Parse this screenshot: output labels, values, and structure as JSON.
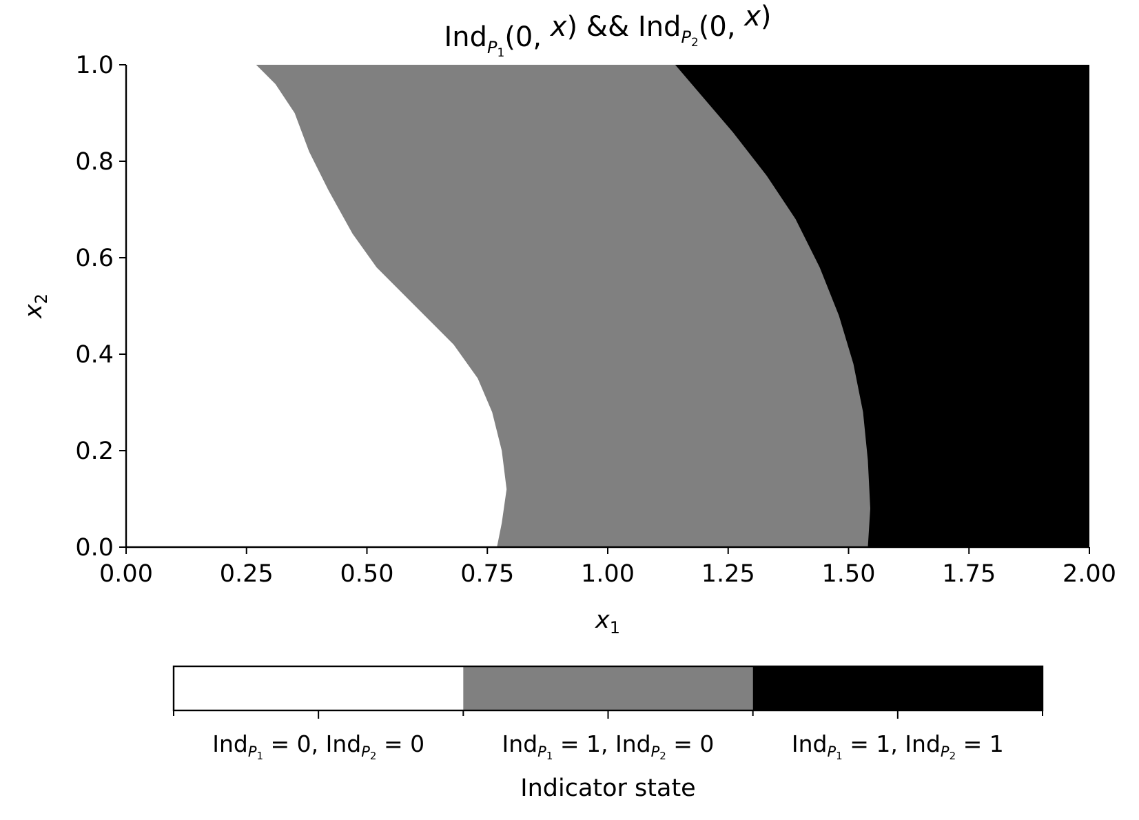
{
  "chart_data": {
    "type": "heatmap",
    "title": {
      "segments": [
        {
          "text": "Ind",
          "style": "normal"
        },
        {
          "text": "P",
          "style": "sub-italic"
        },
        {
          "text": "1",
          "style": "subsub"
        },
        {
          "text": "(0, ",
          "style": "normal"
        },
        {
          "text": "x",
          "style": "italic"
        },
        {
          "text": ") && Ind",
          "style": "normal"
        },
        {
          "text": "P",
          "style": "sub-italic"
        },
        {
          "text": "2",
          "style": "subsub"
        },
        {
          "text": "(0, ",
          "style": "normal"
        },
        {
          "text": "x",
          "style": "italic"
        },
        {
          "text": ")",
          "style": "normal"
        }
      ]
    },
    "xlabel": {
      "base": "x",
      "sub": "1"
    },
    "ylabel": {
      "base": "x",
      "sub": "2"
    },
    "xlim": [
      0.0,
      2.0
    ],
    "ylim": [
      0.0,
      1.0
    ],
    "x_ticks": [
      "0.00",
      "0.25",
      "0.50",
      "0.75",
      "1.00",
      "1.25",
      "1.50",
      "1.75",
      "2.00"
    ],
    "y_ticks": [
      "0.0",
      "0.2",
      "0.4",
      "0.6",
      "0.8",
      "1.0"
    ],
    "grid": false,
    "regions": [
      {
        "state": 0,
        "color": "#ffffff"
      },
      {
        "state": 1,
        "color": "#808080"
      },
      {
        "state": 2,
        "color": "#000000"
      }
    ],
    "boundaries": [
      {
        "name": "Ind_P1 boundary",
        "points": [
          [
            0.77,
            0.0
          ],
          [
            0.78,
            0.05
          ],
          [
            0.79,
            0.12
          ],
          [
            0.78,
            0.2
          ],
          [
            0.76,
            0.28
          ],
          [
            0.73,
            0.35
          ],
          [
            0.68,
            0.42
          ],
          [
            0.6,
            0.5
          ],
          [
            0.52,
            0.58
          ],
          [
            0.47,
            0.65
          ],
          [
            0.42,
            0.74
          ],
          [
            0.38,
            0.82
          ],
          [
            0.35,
            0.9
          ],
          [
            0.31,
            0.96
          ],
          [
            0.27,
            1.0
          ]
        ]
      },
      {
        "name": "Ind_P2 boundary",
        "points": [
          [
            1.54,
            0.0
          ],
          [
            1.545,
            0.08
          ],
          [
            1.54,
            0.18
          ],
          [
            1.53,
            0.28
          ],
          [
            1.51,
            0.38
          ],
          [
            1.48,
            0.48
          ],
          [
            1.44,
            0.58
          ],
          [
            1.39,
            0.68
          ],
          [
            1.33,
            0.77
          ],
          [
            1.26,
            0.86
          ],
          [
            1.2,
            0.93
          ],
          [
            1.14,
            1.0
          ]
        ]
      }
    ],
    "colorbar": {
      "title": "Indicator state",
      "labels": [
        {
          "a": "0",
          "b": "0"
        },
        {
          "a": "1",
          "b": "0"
        },
        {
          "a": "1",
          "b": "1"
        }
      ],
      "colors": [
        "#ffffff",
        "#808080",
        "#000000"
      ]
    }
  }
}
